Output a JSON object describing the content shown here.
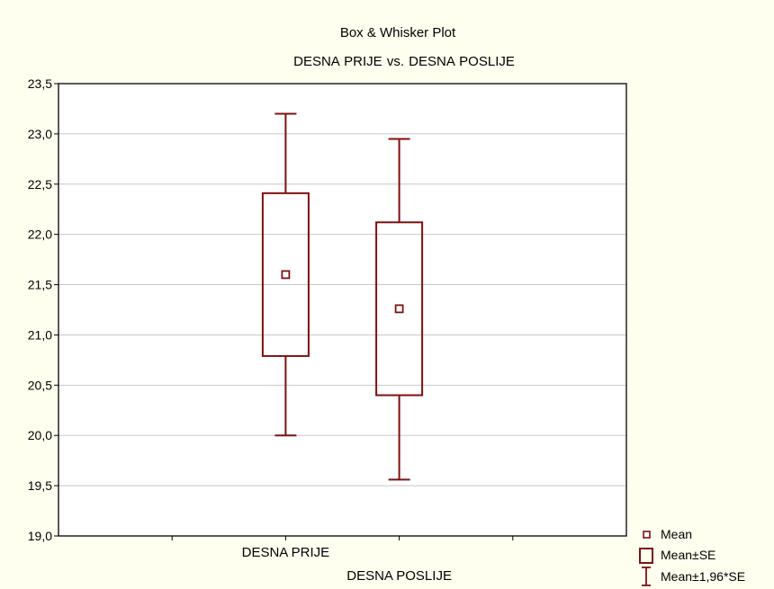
{
  "chart_data": {
    "type": "box",
    "title": "Box & Whisker Plot",
    "subtitle": "DESNA PRIJE vs. DESNA POSLIJE",
    "xlabel": "",
    "ylabel": "",
    "ylim": [
      19.0,
      23.5
    ],
    "yticks": [
      "19,0",
      "19,5",
      "20,0",
      "20,5",
      "21,0",
      "21,5",
      "22,0",
      "22,5",
      "23,0",
      "23,5"
    ],
    "ytick_values": [
      19.0,
      19.5,
      20.0,
      20.5,
      21.0,
      21.5,
      22.0,
      22.5,
      23.0,
      23.5
    ],
    "grid": true,
    "legend_position": "bottom-right",
    "categories": [
      "DESNA PRIJE",
      "DESNA POSLIJE"
    ],
    "boxes": [
      {
        "category": "DESNA PRIJE",
        "mean": 21.6,
        "se_low": 20.79,
        "se_high": 22.41,
        "ci_low": 20.0,
        "ci_high": 23.2
      },
      {
        "category": "DESNA POSLIJE",
        "mean": 21.26,
        "se_low": 20.4,
        "se_high": 22.12,
        "ci_low": 19.56,
        "ci_high": 22.95
      }
    ],
    "legend": [
      {
        "key": "mean",
        "label": "Mean"
      },
      {
        "key": "se",
        "label": "Mean±SE"
      },
      {
        "key": "ci",
        "label": "Mean±1,96*SE"
      }
    ],
    "colors": {
      "series": "#7f1010",
      "background": "#fffff0",
      "plot_background": "#ffffff",
      "grid": "#c8c8c8",
      "axis": "#000000"
    }
  }
}
